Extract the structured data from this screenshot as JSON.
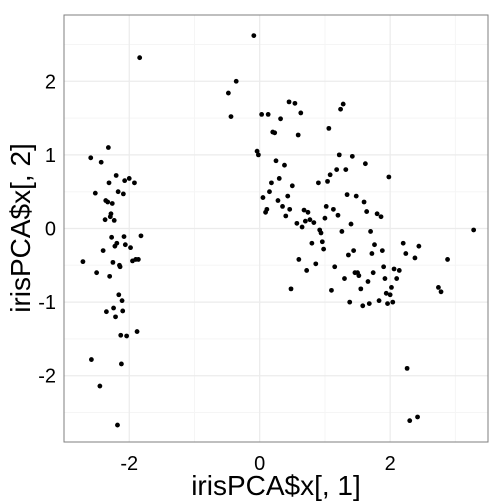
{
  "chart_data": {
    "type": "scatter",
    "title": "",
    "xlabel": "irisPCA$x[, 1]",
    "ylabel": "irisPCA$x[, 2]",
    "xlim": [
      -3.0,
      3.5
    ],
    "ylim": [
      -2.9,
      2.9
    ],
    "x_ticks": [
      -2,
      0,
      2
    ],
    "x_tick_labels": [
      "-2",
      "0",
      "2"
    ],
    "y_ticks": [
      -2,
      -1,
      0,
      1,
      2
    ],
    "y_tick_labels": [
      "-2",
      "-1",
      "0",
      "1",
      "2"
    ],
    "grid": true,
    "legend": "none",
    "colors": {
      "points": "#000000",
      "panel_border": "#7f7f7f",
      "grid_major": "#ebebeb",
      "grid_minor": "#f5f5f5"
    },
    "points": [
      [
        -2.71,
        -0.45
      ],
      [
        -2.59,
        0.96
      ],
      [
        -2.58,
        -1.78
      ],
      [
        -2.52,
        0.48
      ],
      [
        -2.5,
        -0.6
      ],
      [
        -2.45,
        -2.14
      ],
      [
        -2.43,
        0.9
      ],
      [
        -2.4,
        -0.3
      ],
      [
        -2.37,
        0.12
      ],
      [
        -2.36,
        0.38
      ],
      [
        -2.35,
        -1.13
      ],
      [
        -2.33,
        0.36
      ],
      [
        -2.32,
        1.1
      ],
      [
        -2.31,
        0.62
      ],
      [
        -2.3,
        -0.65
      ],
      [
        -2.29,
        0.16
      ],
      [
        -2.28,
        0.2
      ],
      [
        -2.27,
        -0.12
      ],
      [
        -2.26,
        0.34
      ],
      [
        -2.25,
        -0.46
      ],
      [
        -2.24,
        -1.08
      ],
      [
        -2.23,
        0.11
      ],
      [
        -2.22,
        -0.24
      ],
      [
        -2.21,
        -1.2
      ],
      [
        -2.2,
        0.72
      ],
      [
        -2.19,
        -0.2
      ],
      [
        -2.18,
        -2.67
      ],
      [
        -2.17,
        0.5
      ],
      [
        -2.16,
        -0.9
      ],
      [
        -2.15,
        -0.5
      ],
      [
        -2.14,
        -0.52
      ],
      [
        -2.13,
        -1.45
      ],
      [
        -2.12,
        -1.84
      ],
      [
        -2.11,
        -0.98
      ],
      [
        -2.1,
        -1.12
      ],
      [
        -2.09,
        0.47
      ],
      [
        -2.08,
        -0.11
      ],
      [
        -2.07,
        0.65
      ],
      [
        -2.06,
        -0.22
      ],
      [
        -2.04,
        -1.46
      ],
      [
        -2.0,
        0.68
      ],
      [
        -1.98,
        -0.26
      ],
      [
        -1.95,
        -0.44
      ],
      [
        -1.92,
        0.62
      ],
      [
        -1.9,
        -0.42
      ],
      [
        -1.88,
        -1.4
      ],
      [
        -1.86,
        -0.42
      ],
      [
        -1.84,
        2.32
      ],
      [
        -1.82,
        -0.1
      ],
      [
        -0.48,
        1.84
      ],
      [
        -0.44,
        1.52
      ],
      [
        -0.36,
        2.0
      ],
      [
        -0.09,
        2.62
      ],
      [
        -0.04,
        1.05
      ],
      [
        -0.02,
        1.0
      ],
      [
        0.03,
        1.55
      ],
      [
        0.05,
        0.42
      ],
      [
        0.09,
        0.22
      ],
      [
        0.11,
        0.26
      ],
      [
        0.13,
        1.55
      ],
      [
        0.15,
        0.5
      ],
      [
        0.18,
        0.62
      ],
      [
        0.2,
        1.31
      ],
      [
        0.23,
        1.3
      ],
      [
        0.25,
        0.92
      ],
      [
        0.28,
        0.38
      ],
      [
        0.3,
        0.68
      ],
      [
        0.32,
        1.49
      ],
      [
        0.35,
        0.3
      ],
      [
        0.38,
        0.86
      ],
      [
        0.4,
        0.17
      ],
      [
        0.43,
        0.44
      ],
      [
        0.45,
        1.72
      ],
      [
        0.46,
        0.26
      ],
      [
        0.48,
        -0.82
      ],
      [
        0.5,
        0.58
      ],
      [
        0.54,
        1.7
      ],
      [
        0.57,
        0.07
      ],
      [
        0.59,
        1.27
      ],
      [
        0.6,
        -0.42
      ],
      [
        0.63,
        1.57
      ],
      [
        0.65,
        0.02
      ],
      [
        0.68,
        0.25
      ],
      [
        0.7,
        0.1
      ],
      [
        0.72,
        -0.57
      ],
      [
        0.74,
        0.22
      ],
      [
        0.77,
        0.12
      ],
      [
        0.8,
        -0.2
      ],
      [
        0.83,
        0.08
      ],
      [
        0.86,
        -0.48
      ],
      [
        0.9,
        0.62
      ],
      [
        0.92,
        -0.02
      ],
      [
        0.94,
        -0.06
      ],
      [
        0.96,
        -0.18
      ],
      [
        0.98,
        -0.28
      ],
      [
        1.0,
        0.14
      ],
      [
        1.02,
        0.3
      ],
      [
        1.04,
        0.64
      ],
      [
        1.06,
        1.36
      ],
      [
        1.08,
        0.73
      ],
      [
        1.1,
        -0.84
      ],
      [
        1.13,
        0.26
      ],
      [
        1.15,
        -0.52
      ],
      [
        1.18,
        0.8
      ],
      [
        1.2,
        0.18
      ],
      [
        1.22,
        1.0
      ],
      [
        1.24,
        1.62
      ],
      [
        1.26,
        -0.04
      ],
      [
        1.28,
        1.69
      ],
      [
        1.3,
        -0.68
      ],
      [
        1.32,
        0.8
      ],
      [
        1.34,
        0.46
      ],
      [
        1.36,
        -0.36
      ],
      [
        1.38,
        -1.0
      ],
      [
        1.4,
        0.06
      ],
      [
        1.42,
        0.98
      ],
      [
        1.44,
        -0.3
      ],
      [
        1.46,
        -0.6
      ],
      [
        1.48,
        0.44
      ],
      [
        1.5,
        -0.6
      ],
      [
        1.52,
        -0.64
      ],
      [
        1.55,
        -0.82
      ],
      [
        1.58,
        -1.05
      ],
      [
        1.6,
        0.36
      ],
      [
        1.62,
        0.88
      ],
      [
        1.64,
        0.23
      ],
      [
        1.66,
        -0.72
      ],
      [
        1.68,
        -1.02
      ],
      [
        1.7,
        -0.04
      ],
      [
        1.72,
        -0.34
      ],
      [
        1.74,
        -0.6
      ],
      [
        1.76,
        -0.22
      ],
      [
        1.8,
        0.2
      ],
      [
        1.83,
        -0.98
      ],
      [
        1.86,
        0.16
      ],
      [
        1.88,
        -0.3
      ],
      [
        1.9,
        -0.52
      ],
      [
        1.92,
        -0.68
      ],
      [
        1.94,
        -0.88
      ],
      [
        1.96,
        -1.02
      ],
      [
        1.98,
        0.7
      ],
      [
        2.0,
        -0.9
      ],
      [
        2.02,
        -0.8
      ],
      [
        2.04,
        -1.0
      ],
      [
        2.06,
        -0.55
      ],
      [
        2.1,
        -0.68
      ],
      [
        2.14,
        -0.57
      ],
      [
        2.2,
        -0.2
      ],
      [
        2.24,
        -0.34
      ],
      [
        2.26,
        -1.9
      ],
      [
        2.3,
        -2.61
      ],
      [
        2.38,
        -0.4
      ],
      [
        2.42,
        -2.56
      ],
      [
        2.44,
        -0.24
      ],
      [
        2.74,
        -0.8
      ],
      [
        2.78,
        -0.86
      ],
      [
        2.88,
        -0.42
      ],
      [
        3.28,
        -0.02
      ]
    ]
  }
}
